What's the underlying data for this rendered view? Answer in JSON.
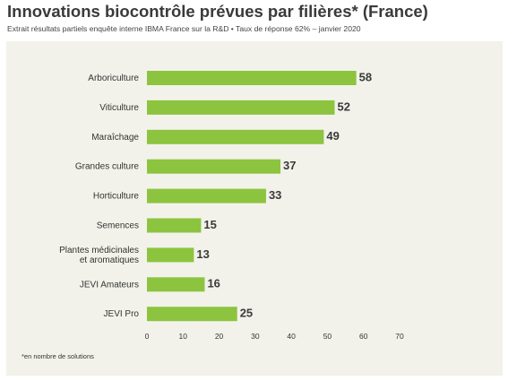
{
  "title": "Innovations biocontrôle prévues par filières* (France)",
  "subtitle": "Extrait résultats partiels enquête interne IBMA France sur la R&D • Taux de réponse 62% – janvier 2020",
  "footnote": "*en nombre de solutions",
  "colors": {
    "bar": "#8cc43f",
    "panel": "#f2f2ea",
    "value_label": "#3a3a3a",
    "text": "#333333"
  },
  "chart_data": {
    "type": "bar",
    "orientation": "horizontal",
    "categories": [
      [
        "Arboriculture"
      ],
      [
        "Viticulture"
      ],
      [
        "Maraîchage"
      ],
      [
        "Grandes culture"
      ],
      [
        "Horticulture"
      ],
      [
        "Semences"
      ],
      [
        "Plantes médicinales",
        "et aromatiques"
      ],
      [
        "JEVI Amateurs"
      ],
      [
        "JEVI Pro"
      ]
    ],
    "values": [
      58,
      52,
      49,
      37,
      33,
      15,
      13,
      16,
      25
    ],
    "xlim": [
      0,
      70
    ],
    "xticks": [
      0,
      10,
      20,
      30,
      40,
      50,
      60,
      70
    ],
    "grid": false,
    "legend": "none"
  }
}
